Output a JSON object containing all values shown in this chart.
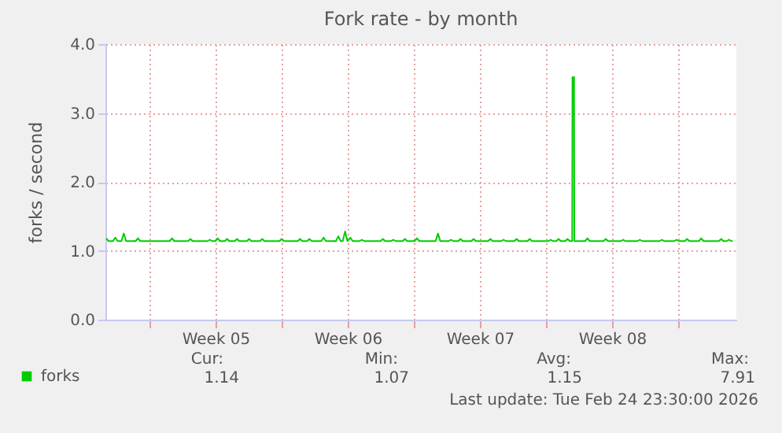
{
  "chart_data": {
    "type": "line",
    "title": "Fork rate - by month",
    "ylabel": "forks / second",
    "xlim": [
      "2026-01-22T16:00",
      "2026-02-25T02:00"
    ],
    "xticks": [
      {
        "value": "2026-01-25",
        "label": null
      },
      {
        "value": "2026-01-28T12:00",
        "label": "Week 05"
      },
      {
        "value": "2026-02-01",
        "label": null
      },
      {
        "value": "2026-02-04T12:00",
        "label": "Week 06"
      },
      {
        "value": "2026-02-08",
        "label": null
      },
      {
        "value": "2026-02-11T12:00",
        "label": "Week 07"
      },
      {
        "value": "2026-02-15",
        "label": null
      },
      {
        "value": "2026-02-18T12:00",
        "label": "Week 08"
      },
      {
        "value": "2026-02-22",
        "label": null
      }
    ],
    "ylim": [
      0,
      4
    ],
    "yticks": [
      {
        "value": 0,
        "label": "0.0"
      },
      {
        "value": 1,
        "label": "1.0"
      },
      {
        "value": 2,
        "label": "2.0"
      },
      {
        "value": 3,
        "label": "3.0"
      },
      {
        "value": 4,
        "label": "4.0"
      }
    ],
    "grid": true,
    "legend": "bottom left",
    "marker": "none",
    "line_style": "solid",
    "annotations": [
      "Cur:",
      "1.14",
      "Min:",
      "1.07",
      "Avg:",
      "1.15",
      "Max:",
      "7.91",
      "Last update: Tue Feb 24 23:30:00 2026"
    ],
    "series": [
      {
        "name": "forks",
        "color": "#00cc00",
        "x": [
          "2026-01-22T17:00",
          "2026-01-22T20:00",
          "2026-01-23T01:30",
          "2026-01-23T04:30",
          "2026-01-23T07:30",
          "2026-01-23T12:20",
          "2026-01-23T15:20",
          "2026-01-23T18:20",
          "2026-01-24T06:20",
          "2026-01-24T09:20",
          "2026-01-24T12:20",
          "2026-01-26T01:40",
          "2026-01-26T04:40",
          "2026-01-26T07:40",
          "2026-01-27T01:00",
          "2026-01-27T04:00",
          "2026-01-27T07:00",
          "2026-01-28T01:40",
          "2026-01-28T04:40",
          "2026-01-28T07:40",
          "2026-01-28T11:40",
          "2026-01-28T14:40",
          "2026-01-28T17:40",
          "2026-01-28T23:40",
          "2026-01-29T02:40",
          "2026-01-29T05:40",
          "2026-01-29T12:20",
          "2026-01-29T15:20",
          "2026-01-29T18:20",
          "2026-01-30T03:40",
          "2026-01-30T06:40",
          "2026-01-30T09:40",
          "2026-01-30T20:20",
          "2026-01-30T23:20",
          "2026-01-31T02:20",
          "2026-01-31T21:00",
          "2026-02-01T00:00",
          "2026-02-01T03:00",
          "2026-02-01T20:20",
          "2026-02-01T23:20",
          "2026-02-02T02:20",
          "2026-02-02T08:20",
          "2026-02-02T11:20",
          "2026-02-02T14:20",
          "2026-02-03T02:20",
          "2026-02-03T05:20",
          "2026-02-03T08:20",
          "2026-02-03T21:00",
          "2026-02-04T00:00",
          "2026-02-04T03:00",
          "2026-02-04T05:40",
          "2026-02-04T08:40",
          "2026-02-04T11:40",
          "2026-02-04T15:20",
          "2026-02-04T18:20",
          "2026-02-05T03:00",
          "2026-02-05T06:00",
          "2026-02-05T09:00",
          "2026-02-06T05:40",
          "2026-02-06T08:40",
          "2026-02-06T11:40",
          "2026-02-06T19:00",
          "2026-02-06T22:00",
          "2026-02-07T01:00",
          "2026-02-07T09:40",
          "2026-02-07T12:40",
          "2026-02-07T15:40",
          "2026-02-08T01:00",
          "2026-02-08T04:00",
          "2026-02-08T07:00",
          "2026-02-09T03:40",
          "2026-02-09T06:40",
          "2026-02-09T09:40",
          "2026-02-09T20:20",
          "2026-02-09T23:20",
          "2026-02-10T02:20",
          "2026-02-10T08:20",
          "2026-02-10T11:20",
          "2026-02-10T14:20",
          "2026-02-11T01:00",
          "2026-02-11T04:00",
          "2026-02-11T07:00",
          "2026-02-11T22:20",
          "2026-02-12T01:20",
          "2026-02-12T04:20",
          "2026-02-12T15:00",
          "2026-02-12T18:00",
          "2026-02-12T21:00",
          "2026-02-13T07:40",
          "2026-02-13T10:40",
          "2026-02-13T13:40",
          "2026-02-14T00:20",
          "2026-02-14T03:20",
          "2026-02-14T06:20",
          "2026-02-15T03:00",
          "2026-02-15T06:00",
          "2026-02-15T09:00",
          "2026-02-15T13:00",
          "2026-02-15T16:00",
          "2026-02-15T19:00",
          "2026-02-16T00:20",
          "2026-02-16T03:20",
          "2026-02-16T06:20",
          "2026-02-16T09:20",
          "2026-02-16T09:40",
          "2026-02-16T11:40",
          "2026-02-16T12:00",
          "2026-02-17T01:40",
          "2026-02-17T04:40",
          "2026-02-17T07:40",
          "2026-02-18T01:00",
          "2026-02-18T04:00",
          "2026-02-18T07:00",
          "2026-02-18T23:00",
          "2026-02-19T02:00",
          "2026-02-19T05:00",
          "2026-02-19T20:20",
          "2026-02-19T23:20",
          "2026-02-20T02:20",
          "2026-02-21T00:20",
          "2026-02-21T03:20",
          "2026-02-21T06:20",
          "2026-02-21T19:00",
          "2026-02-21T22:00",
          "2026-02-22T01:00",
          "2026-02-22T08:20",
          "2026-02-22T11:20",
          "2026-02-22T14:20",
          "2026-02-23T02:20",
          "2026-02-23T05:20",
          "2026-02-23T08:20",
          "2026-02-24T03:40",
          "2026-02-24T06:40",
          "2026-02-24T09:40",
          "2026-02-24T13:40",
          "2026-02-24T16:40",
          "2026-02-24T19:40",
          "2026-02-24T21:20"
        ],
        "values": [
          1.18,
          1.14,
          1.14,
          1.19,
          1.14,
          1.14,
          1.25,
          1.14,
          1.14,
          1.18,
          1.14,
          1.14,
          1.18,
          1.14,
          1.14,
          1.17,
          1.14,
          1.14,
          1.16,
          1.14,
          1.14,
          1.18,
          1.14,
          1.14,
          1.17,
          1.14,
          1.14,
          1.17,
          1.14,
          1.14,
          1.17,
          1.14,
          1.14,
          1.17,
          1.14,
          1.14,
          1.17,
          1.14,
          1.14,
          1.17,
          1.14,
          1.14,
          1.17,
          1.14,
          1.14,
          1.19,
          1.14,
          1.14,
          1.21,
          1.14,
          1.14,
          1.28,
          1.14,
          1.19,
          1.14,
          1.14,
          1.16,
          1.14,
          1.14,
          1.17,
          1.14,
          1.14,
          1.16,
          1.14,
          1.14,
          1.17,
          1.14,
          1.14,
          1.18,
          1.14,
          1.14,
          1.25,
          1.14,
          1.14,
          1.16,
          1.14,
          1.14,
          1.17,
          1.14,
          1.14,
          1.17,
          1.14,
          1.14,
          1.17,
          1.14,
          1.14,
          1.16,
          1.14,
          1.14,
          1.17,
          1.14,
          1.14,
          1.17,
          1.14,
          1.14,
          1.16,
          1.14,
          1.14,
          1.17,
          1.14,
          1.14,
          1.17,
          1.14,
          1.14,
          3.52,
          3.52,
          1.14,
          1.14,
          1.18,
          1.14,
          1.14,
          1.17,
          1.14,
          1.14,
          1.16,
          1.14,
          1.14,
          1.16,
          1.14,
          1.14,
          1.16,
          1.14,
          1.14,
          1.16,
          1.14,
          1.14,
          1.17,
          1.14,
          1.14,
          1.18,
          1.14,
          1.14,
          1.17,
          1.14,
          1.14,
          1.16,
          1.14,
          1.14
        ]
      }
    ]
  }
}
